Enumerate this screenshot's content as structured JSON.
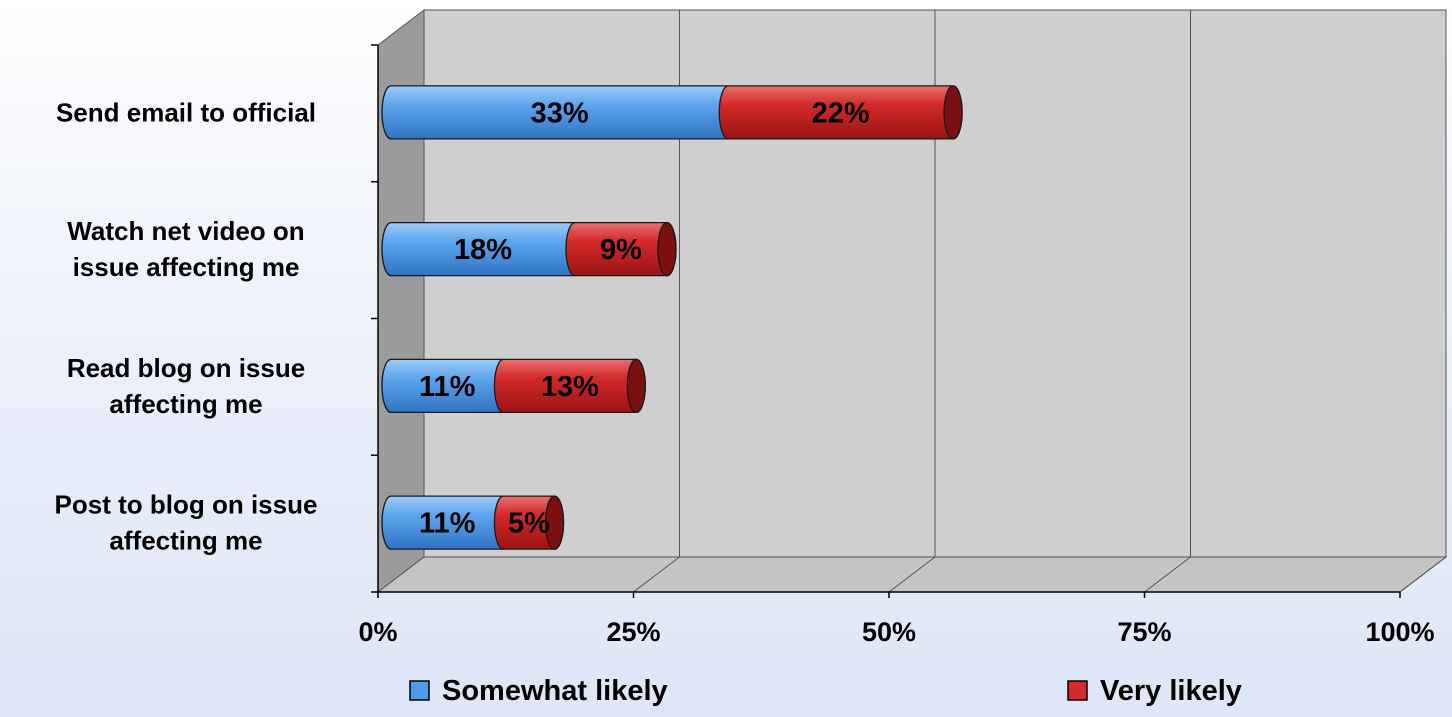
{
  "chart_data": {
    "type": "bar",
    "orientation": "horizontal",
    "stacked": true,
    "style": "3d-cylinder",
    "categories": [
      "Send email to official",
      "Watch net video on issue affecting me",
      "Read blog on issue affecting me",
      "Post to blog on issue affecting me"
    ],
    "series": [
      {
        "name": "Somewhat likely",
        "color": "#4f9be9",
        "values": [
          33,
          18,
          11,
          11
        ]
      },
      {
        "name": "Very likely",
        "color": "#d62a2a",
        "values": [
          22,
          9,
          13,
          5
        ]
      }
    ],
    "data_labels": [
      [
        "33%",
        "18%",
        "11%",
        "11%"
      ],
      [
        "22%",
        "9%",
        "13%",
        "5%"
      ]
    ],
    "xlim": [
      0,
      100
    ],
    "x_ticks": [
      0,
      25,
      50,
      75,
      100
    ],
    "x_tick_labels": [
      "0%",
      "25%",
      "50%",
      "75%",
      "100%"
    ],
    "category_label_lines": [
      [
        "Send email to official"
      ],
      [
        "Watch net video on",
        "issue affecting me"
      ],
      [
        "Read blog on issue",
        "affecting me"
      ],
      [
        "Post to blog on issue",
        "affecting me"
      ]
    ],
    "grid": true,
    "legend_position": "bottom",
    "wall_color": "#cfcfcf",
    "side_wall_color": "#9b9b9b",
    "floor_color": "#c4c4c4"
  }
}
